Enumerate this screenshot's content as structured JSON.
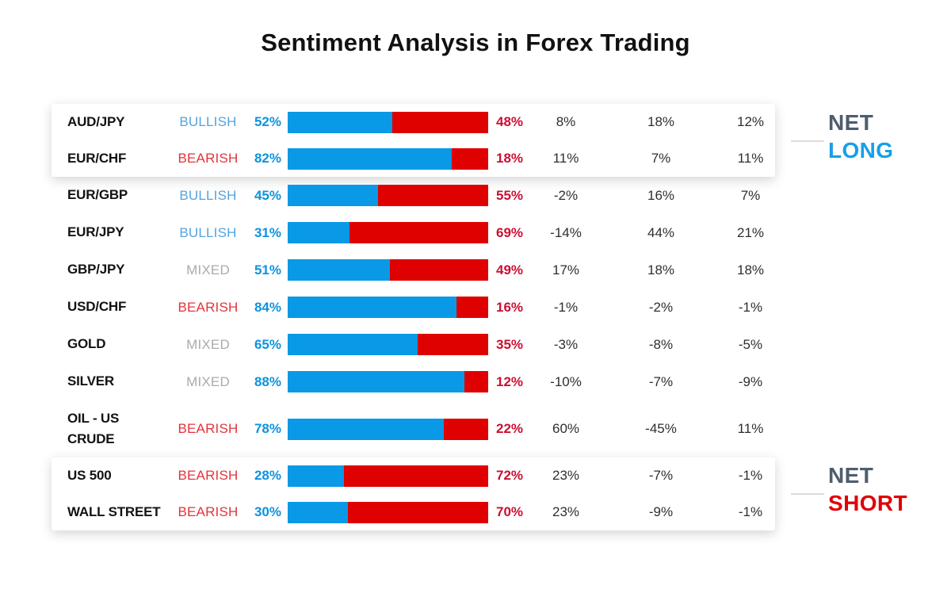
{
  "title": "Sentiment Analysis in Forex Trading",
  "legend": {
    "net_long": {
      "line1": "NET",
      "line2": "LONG"
    },
    "net_short": {
      "line1": "NET",
      "line2": "SHORT"
    }
  },
  "colors": {
    "bar_long": "#0A99E6",
    "bar_short": "#DF0000",
    "bullish": "#54A4DE",
    "bearish": "#E4333B",
    "mixed": "#ABABAB",
    "long_pct": "#0D93DE",
    "short_pct": "#CC0F31",
    "net": "#4E5D6D",
    "net_long": "#17A0E8",
    "net_short": "#E00006"
  },
  "chart_data": {
    "type": "bar",
    "orientation": "horizontal-stacked",
    "series_names": [
      "Long %",
      "Short %"
    ],
    "value_range": [
      0,
      100
    ],
    "rows": [
      {
        "instrument": "AUD/JPY",
        "sentiment": "BULLISH",
        "long": 52,
        "short": 48,
        "cols": [
          "8%",
          "18%",
          "12%"
        ],
        "group": "net_long"
      },
      {
        "instrument": "EUR/CHF",
        "sentiment": "BEARISH",
        "long": 82,
        "short": 18,
        "cols": [
          "11%",
          "7%",
          "11%"
        ],
        "group": "net_long"
      },
      {
        "instrument": "EUR/GBP",
        "sentiment": "BULLISH",
        "long": 45,
        "short": 55,
        "cols": [
          "-2%",
          "16%",
          "7%"
        ],
        "group": "middle"
      },
      {
        "instrument": "EUR/JPY",
        "sentiment": "BULLISH",
        "long": 31,
        "short": 69,
        "cols": [
          "-14%",
          "44%",
          "21%"
        ],
        "group": "middle"
      },
      {
        "instrument": "GBP/JPY",
        "sentiment": "MIXED",
        "long": 51,
        "short": 49,
        "cols": [
          "17%",
          "18%",
          "18%"
        ],
        "group": "middle"
      },
      {
        "instrument": "USD/CHF",
        "sentiment": "BEARISH",
        "long": 84,
        "short": 16,
        "cols": [
          "-1%",
          "-2%",
          "-1%"
        ],
        "group": "middle"
      },
      {
        "instrument": "GOLD",
        "sentiment": "MIXED",
        "long": 65,
        "short": 35,
        "cols": [
          "-3%",
          "-8%",
          "-5%"
        ],
        "group": "middle"
      },
      {
        "instrument": "SILVER",
        "sentiment": "MIXED",
        "long": 88,
        "short": 12,
        "cols": [
          "-10%",
          "-7%",
          "-9%"
        ],
        "group": "middle"
      },
      {
        "instrument": "OIL - US\nCRUDE",
        "sentiment": "BEARISH",
        "long": 78,
        "short": 22,
        "cols": [
          "60%",
          "-45%",
          "11%"
        ],
        "group": "middle",
        "tall": true
      },
      {
        "instrument": "US 500",
        "sentiment": "BEARISH",
        "long": 28,
        "short": 72,
        "cols": [
          "23%",
          "-7%",
          "-1%"
        ],
        "group": "net_short"
      },
      {
        "instrument": "WALL STREET",
        "sentiment": "BEARISH",
        "long": 30,
        "short": 70,
        "cols": [
          "23%",
          "-9%",
          "-1%"
        ],
        "group": "net_short"
      }
    ]
  }
}
